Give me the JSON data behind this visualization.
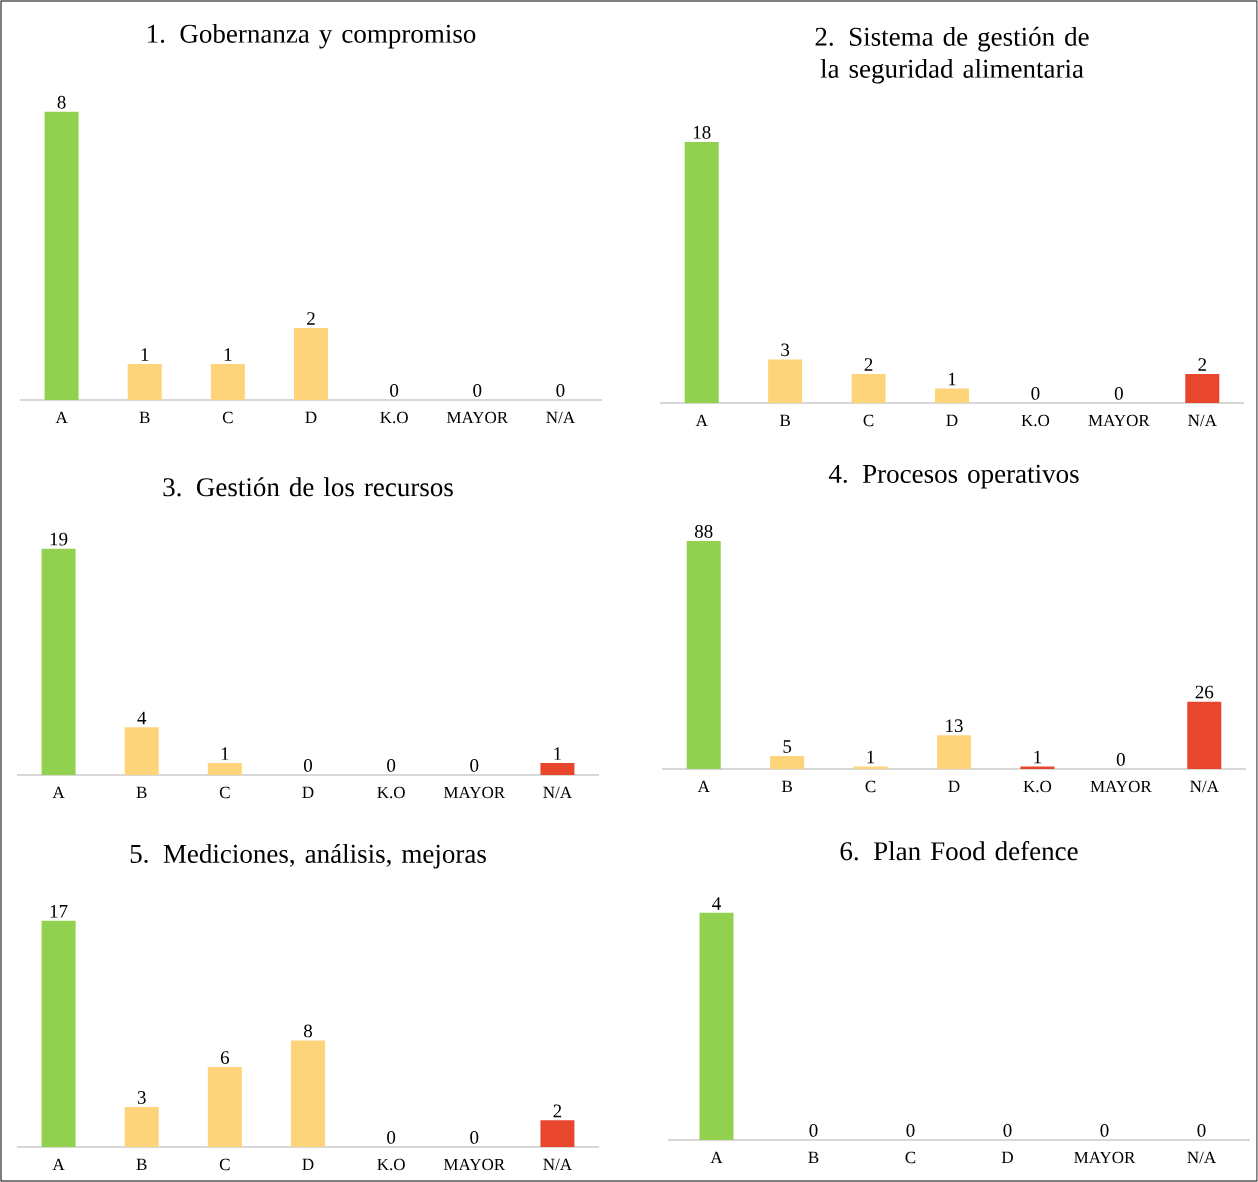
{
  "chart_data": [
    {
      "type": "bar",
      "title": "1. Gobernanza y compromiso",
      "categories": [
        "A",
        "B",
        "C",
        "D",
        "K.O",
        "MAYOR",
        "N/A"
      ],
      "values": [
        8,
        1,
        1,
        2,
        0,
        0,
        0
      ],
      "colors": [
        "#92d050",
        "#fdd47a",
        "#fdd47a",
        "#fdd47a",
        "#fdd47a",
        "#e8462d",
        "#e8462d"
      ],
      "data_labels": true
    },
    {
      "type": "bar",
      "title": "2. Sistema de gestión de la seguridad alimentaria",
      "categories": [
        "A",
        "B",
        "C",
        "D",
        "K.O",
        "MAYOR",
        "N/A"
      ],
      "values": [
        18,
        3,
        2,
        1,
        0,
        0,
        2
      ],
      "colors": [
        "#92d050",
        "#fdd47a",
        "#fdd47a",
        "#fdd47a",
        "#e8462d",
        "#e8462d",
        "#e8462d"
      ],
      "data_labels": true
    },
    {
      "type": "bar",
      "title": "3. Gestión de los recursos",
      "categories": [
        "A",
        "B",
        "C",
        "D",
        "K.O",
        "MAYOR",
        "N/A"
      ],
      "values": [
        19,
        4,
        1,
        0,
        0,
        0,
        1
      ],
      "colors": [
        "#92d050",
        "#fdd47a",
        "#fdd47a",
        "#fdd47a",
        "#e8462d",
        "#e8462d",
        "#e8462d"
      ],
      "data_labels": true
    },
    {
      "type": "bar",
      "title": "4. Procesos operativos",
      "categories": [
        "A",
        "B",
        "C",
        "D",
        "K.O",
        "MAYOR",
        "N/A"
      ],
      "values": [
        88,
        5,
        1,
        13,
        1,
        0,
        26
      ],
      "colors": [
        "#92d050",
        "#fdd47a",
        "#fdd47a",
        "#fdd47a",
        "#e8462d",
        "#e8462d",
        "#e8462d"
      ],
      "data_labels": true
    },
    {
      "type": "bar",
      "title": "5. Mediciones, análisis, mejoras",
      "categories": [
        "A",
        "B",
        "C",
        "D",
        "K.O",
        "MAYOR",
        "N/A"
      ],
      "values": [
        17,
        3,
        6,
        8,
        0,
        0,
        2
      ],
      "colors": [
        "#92d050",
        "#fdd47a",
        "#fdd47a",
        "#fdd47a",
        "#e8462d",
        "#e8462d",
        "#e8462d"
      ],
      "data_labels": true
    },
    {
      "type": "bar",
      "title": "6. Plan Food defence",
      "categories": [
        "A",
        "B",
        "C",
        "D",
        "MAYOR",
        "N/A"
      ],
      "values": [
        4,
        0,
        0,
        0,
        0,
        0
      ],
      "colors": [
        "#92d050",
        "#fdd47a",
        "#fdd47a",
        "#fdd47a",
        "#e8462d",
        "#e8462d"
      ],
      "data_labels": true
    }
  ]
}
